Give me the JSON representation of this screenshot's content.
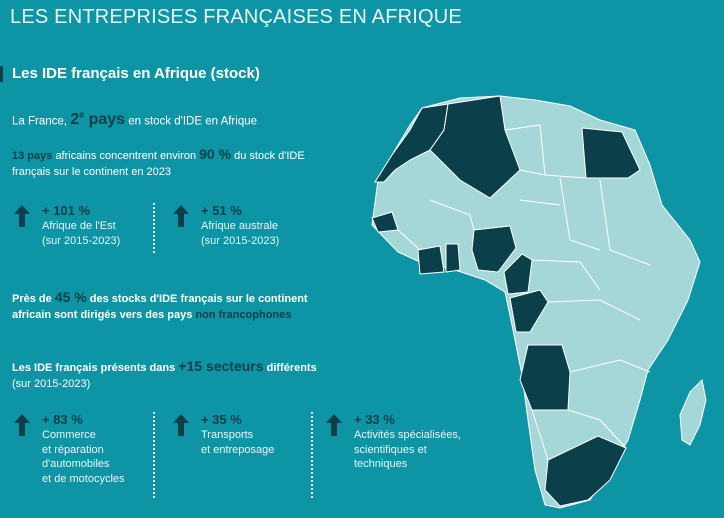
{
  "header": {
    "title": "LES ENTREPRISES FRANÇAISES EN AFRIQUE"
  },
  "section": {
    "title": "Les IDE français en Afrique (stock)"
  },
  "rank": {
    "prefix": "La France,",
    "num": "2",
    "sup": "e",
    "word": "pays",
    "suffix": "en stock d'IDE en Afrique"
  },
  "concentration": {
    "count": "13 pays",
    "text1": "africains concentrent environ",
    "pct": "90 %",
    "text2": "du stock d'IDE",
    "text3": "français sur le continent en 2023"
  },
  "regional": [
    {
      "pct": "+ 101 %",
      "label": "Afrique de l'Est",
      "period": "(sur 2015-2023)"
    },
    {
      "pct": "+ 51 %",
      "label": "Afrique australe",
      "period": "(sur 2015-2023)"
    }
  ],
  "nonfranco": {
    "lead": "Près de",
    "pct": "45 %",
    "text1": "des stocks d'IDE français sur le continent",
    "text2": "africain sont dirigés vers des pays",
    "hl": "non francophones"
  },
  "sectors": {
    "lead": "Les IDE français présents dans",
    "count": "+15 secteurs",
    "tail": "différents",
    "period": "(sur 2015-2023)"
  },
  "sector_stats": [
    {
      "pct": "+ 83 %",
      "lines": [
        "Commerce",
        "et réparation",
        "d'automobiles",
        "et de motocycles"
      ]
    },
    {
      "pct": "+ 35 %",
      "lines": [
        "Transports",
        "et entreposage"
      ]
    },
    {
      "pct": "+ 33 %",
      "lines": [
        "Activités spécialisées,",
        "scientifiques et",
        "techniques"
      ]
    }
  ],
  "colors": {
    "background": "#0e95a5",
    "highlight": "#0b3f49",
    "map_light": "#a5d6d8"
  }
}
